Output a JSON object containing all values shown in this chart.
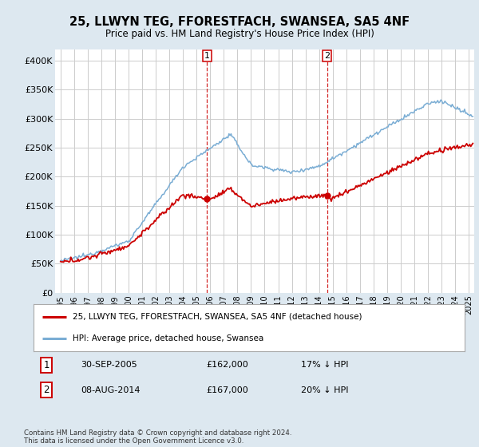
{
  "title": "25, LLWYN TEG, FFORESTFACH, SWANSEA, SA5 4NF",
  "subtitle": "Price paid vs. HM Land Registry's House Price Index (HPI)",
  "legend_line1": "25, LLWYN TEG, FFORESTFACH, SWANSEA, SA5 4NF (detached house)",
  "legend_line2": "HPI: Average price, detached house, Swansea",
  "footnote": "Contains HM Land Registry data © Crown copyright and database right 2024.\nThis data is licensed under the Open Government Licence v3.0.",
  "marker1_date": "30-SEP-2005",
  "marker1_price": "£162,000",
  "marker1_hpi": "17% ↓ HPI",
  "marker2_date": "08-AUG-2014",
  "marker2_price": "£167,000",
  "marker2_hpi": "20% ↓ HPI",
  "ylim": [
    0,
    420000
  ],
  "yticks": [
    0,
    50000,
    100000,
    150000,
    200000,
    250000,
    300000,
    350000,
    400000
  ],
  "ytick_labels": [
    "£0",
    "£50K",
    "£100K",
    "£150K",
    "£200K",
    "£250K",
    "£300K",
    "£350K",
    "£400K"
  ],
  "hpi_color": "#7aadd4",
  "price_color": "#cc0000",
  "vline_color": "#cc0000",
  "background_color": "#dde8f0",
  "plot_bg_color": "#ffffff",
  "marker1_x_year": 2005.75,
  "marker2_x_year": 2014.58,
  "xlim_start": 1994.6,
  "xlim_end": 2025.4
}
